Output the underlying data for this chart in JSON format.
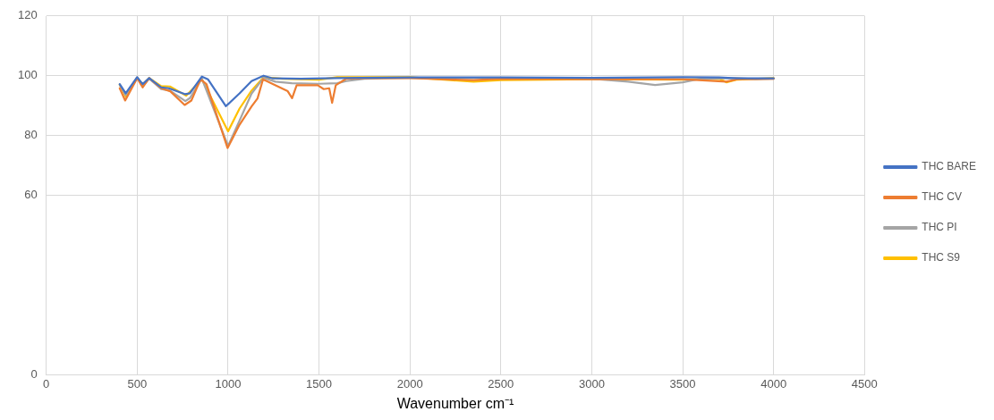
{
  "chart_data": {
    "type": "line",
    "xlabel": "Wavenumber cm⁻¹",
    "xlim": [
      0,
      4500
    ],
    "xticks": [
      0,
      500,
      1000,
      1500,
      2000,
      2500,
      3000,
      3500,
      4000,
      4500
    ],
    "ylim": [
      0,
      120
    ],
    "yticks": [
      0,
      60,
      80,
      100,
      120
    ],
    "grid": true,
    "legend": "right",
    "marker": "none",
    "line_style": "solid",
    "series": [
      {
        "name": "THC BARE",
        "color": "#4472c4",
        "x": [
          404,
          437,
          500,
          530,
          566,
          632,
          674,
          765,
          790,
          856,
          889,
          988,
          1063,
          1129,
          1195,
          1245,
          1400,
          1600,
          2000,
          2500,
          3000,
          3500,
          3700,
          3800,
          4000
        ],
        "values": [
          97.2,
          94.1,
          99.5,
          97.2,
          99.2,
          96.1,
          95.8,
          93.8,
          94.1,
          99.7,
          98.8,
          89.8,
          94.1,
          98.2,
          100,
          99.1,
          99,
          99.2,
          99.4,
          99.4,
          99.3,
          99.5,
          99.4,
          99.1,
          99.1
        ]
      },
      {
        "name": "THC CV",
        "color": "#ed7d31",
        "x": [
          404,
          434,
          500,
          530,
          566,
          632,
          682,
          761,
          798,
          848,
          881,
          997,
          1063,
          1129,
          1162,
          1192,
          1261,
          1328,
          1352,
          1377,
          1493,
          1526,
          1556,
          1572,
          1592,
          1650,
          1800,
          2000,
          2350,
          2500,
          3000,
          3500,
          3740,
          3800,
          4000
        ],
        "values": [
          95.8,
          91.7,
          99.2,
          96.1,
          99.2,
          95.8,
          94.8,
          90.2,
          91.7,
          98.8,
          97.2,
          75.8,
          83.6,
          89.7,
          92.4,
          98.8,
          96.8,
          94.8,
          92.5,
          96.8,
          96.8,
          95.5,
          95.8,
          90.9,
          96.8,
          99,
          99.3,
          99.2,
          98.5,
          99,
          98.8,
          98.8,
          98,
          98.8,
          99
        ]
      },
      {
        "name": "THC PI",
        "color": "#a5a5a5",
        "x": [
          404,
          437,
          500,
          530,
          566,
          632,
          680,
          765,
          790,
          856,
          1000,
          1063,
          1129,
          1195,
          1260,
          1350,
          1500,
          1600,
          1650,
          1750,
          2000,
          2500,
          3000,
          3200,
          3348,
          3500,
          3600,
          3800,
          3900,
          4000
        ],
        "values": [
          97,
          93.5,
          99.5,
          96.5,
          99,
          95.5,
          95,
          91.5,
          92.5,
          99,
          76.5,
          85,
          94,
          99.3,
          98,
          97.5,
          97.3,
          97.5,
          98.2,
          99,
          99.3,
          99.3,
          99,
          98,
          96.9,
          97.8,
          99,
          99.2,
          98.8,
          99
        ]
      },
      {
        "name": "THC S9",
        "color": "#ffc000",
        "x": [
          404,
          437,
          500,
          530,
          566,
          632,
          680,
          770,
          856,
          1000,
          1063,
          1129,
          1195,
          1300,
          1500,
          1600,
          2000,
          2350,
          2500,
          3000,
          3500,
          3700,
          3740,
          3800,
          4000
        ],
        "values": [
          97,
          93,
          99.3,
          97,
          99.2,
          96.5,
          96.4,
          93.3,
          98.8,
          81.4,
          89,
          95,
          99.5,
          99,
          98.7,
          99.5,
          99.5,
          98,
          98.5,
          98.8,
          98.7,
          99,
          97.8,
          98.7,
          99.2
        ]
      }
    ]
  }
}
